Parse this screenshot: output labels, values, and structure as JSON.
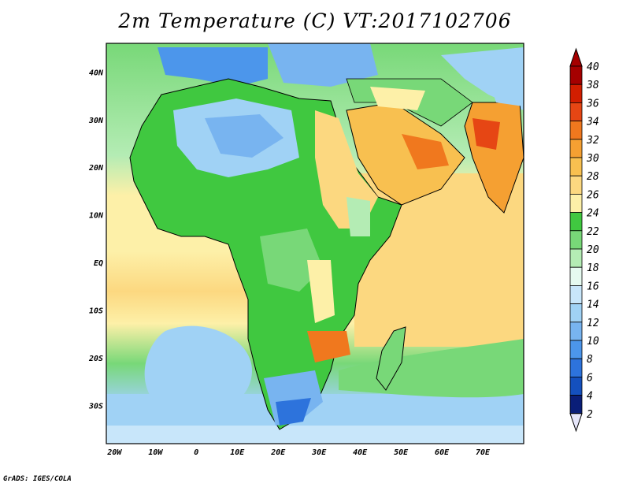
{
  "title": "2m Temperature (C) VT:2017102706",
  "footer": "GrADS: IGES/COLA",
  "map": {
    "lon_range": [
      -22,
      80
    ],
    "lat_range": [
      -38,
      46
    ],
    "x_ticks": [
      "20W",
      "10W",
      "0",
      "10E",
      "20E",
      "30E",
      "40E",
      "50E",
      "60E",
      "70E"
    ],
    "x_tick_lons": [
      -20,
      -10,
      0,
      10,
      20,
      30,
      40,
      50,
      60,
      70
    ],
    "y_ticks": [
      "40N",
      "30N",
      "20N",
      "10N",
      "EQ",
      "10S",
      "20S",
      "30S"
    ],
    "y_tick_lats": [
      40,
      30,
      20,
      10,
      0,
      -10,
      -20,
      -30
    ]
  },
  "colorbar": {
    "labels": [
      "40",
      "38",
      "36",
      "34",
      "32",
      "30",
      "28",
      "26",
      "24",
      "22",
      "20",
      "18",
      "16",
      "14",
      "12",
      "10",
      "8",
      "6",
      "4",
      "2"
    ],
    "colors": [
      "#a50000",
      "#d21e00",
      "#e64614",
      "#f0781e",
      "#f5a032",
      "#f8c050",
      "#fcd880",
      "#fdf0a8",
      "#40c840",
      "#78d878",
      "#b4ecb4",
      "#e6faf0",
      "#c8e6fa",
      "#a0d2f5",
      "#78b4f0",
      "#4c96eb",
      "#2d73dc",
      "#1450be",
      "#0a1e78"
    ],
    "top_triangle_color": "#a50000",
    "bottom_triangle_color": "#e6e6fa"
  }
}
